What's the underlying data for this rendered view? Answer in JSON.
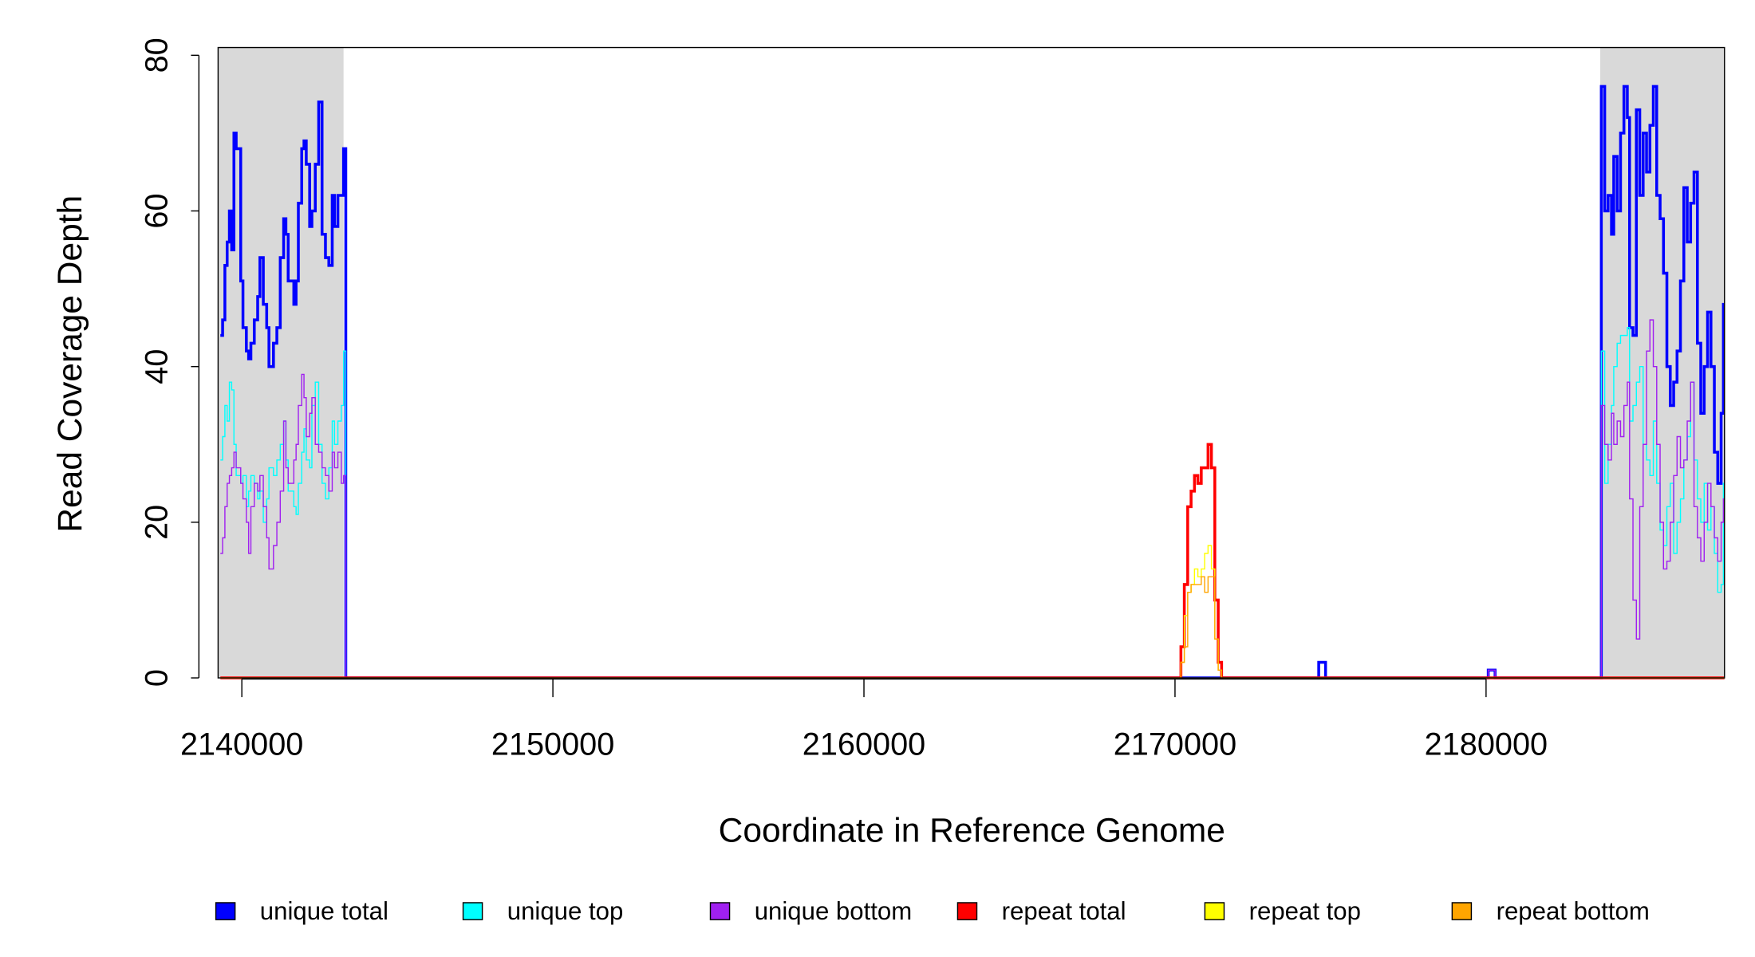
{
  "chart_data": {
    "type": "step",
    "x_label": "Coordinate in Reference Genome",
    "y_label": "Read Coverage Depth",
    "xlim": [
      2139237,
      2187665
    ],
    "ylim": [
      0,
      81
    ],
    "xticks": [
      2140000,
      2150000,
      2160000,
      2170000,
      2180000
    ],
    "yticks": [
      0,
      20,
      40,
      60,
      80
    ],
    "shaded_ranges": [
      [
        2139237,
        2143270
      ],
      [
        2183670,
        2187665
      ]
    ],
    "shade_color": "#d9d9d9",
    "legend_position": "bottom",
    "series": [
      {
        "name": "unique total",
        "color": "#0000ff",
        "width": 2.5,
        "x": [
          2139310,
          2139382,
          2139455,
          2139528,
          2139600,
          2139673,
          2139746,
          2139818,
          2139964,
          2140036,
          2140145,
          2140218,
          2140291,
          2140400,
          2140509,
          2140581,
          2140690,
          2140799,
          2140872,
          2141017,
          2141126,
          2141235,
          2141344,
          2141417,
          2141490,
          2141671,
          2141744,
          2141817,
          2141925,
          2141998,
          2142071,
          2142180,
          2142252,
          2142361,
          2142470,
          2142579,
          2142688,
          2142797,
          2142906,
          2142979,
          2143088,
          2143197,
          2143270,
          2143342,
          2174620,
          2174840,
          2180070,
          2180290,
          2183705,
          2183814,
          2183923,
          2184032,
          2184105,
          2184214,
          2184323,
          2184432,
          2184541,
          2184614,
          2184723,
          2184832,
          2184941,
          2185050,
          2185159,
          2185268,
          2185377,
          2185486,
          2185595,
          2185704,
          2185813,
          2185922,
          2186031,
          2186140,
          2186249,
          2186358,
          2186467,
          2186576,
          2186685,
          2186794,
          2186903,
          2187012,
          2187121,
          2187230,
          2187339,
          2187448,
          2187557,
          2187630
        ],
        "values": [
          44,
          46,
          53,
          56,
          60,
          55,
          70,
          68,
          51,
          45,
          42,
          41,
          43,
          46,
          49,
          54,
          48,
          45,
          40,
          43,
          45,
          54,
          59,
          57,
          51,
          48,
          51,
          61,
          68,
          69,
          66,
          58,
          60,
          66,
          74,
          57,
          54,
          53,
          62,
          58,
          62,
          62,
          68,
          0,
          2,
          0,
          1,
          0,
          76,
          60,
          62,
          57,
          67,
          60,
          70,
          76,
          72,
          45,
          44,
          73,
          62,
          70,
          65,
          71,
          76,
          62,
          59,
          52,
          40,
          35,
          38,
          42,
          51,
          63,
          56,
          61,
          65,
          43,
          34,
          40,
          47,
          40,
          29,
          25,
          34,
          48
        ]
      },
      {
        "name": "unique top",
        "color": "#00ffff",
        "width": 1,
        "x": [
          2139310,
          2139382,
          2139455,
          2139528,
          2139600,
          2139673,
          2139746,
          2139818,
          2139964,
          2140036,
          2140145,
          2140218,
          2140291,
          2140400,
          2140509,
          2140581,
          2140690,
          2140799,
          2140872,
          2141017,
          2141126,
          2141235,
          2141344,
          2141417,
          2141490,
          2141671,
          2141744,
          2141817,
          2141925,
          2141998,
          2142071,
          2142180,
          2142252,
          2142361,
          2142470,
          2142579,
          2142688,
          2142797,
          2142906,
          2142979,
          2143088,
          2143197,
          2143270,
          2143342,
          2174620,
          2174840,
          2180070,
          2180290,
          2183705,
          2183814,
          2183923,
          2184032,
          2184105,
          2184214,
          2184323,
          2184432,
          2184541,
          2184614,
          2184723,
          2184832,
          2184941,
          2185050,
          2185159,
          2185268,
          2185377,
          2185486,
          2185595,
          2185704,
          2185813,
          2185922,
          2186031,
          2186140,
          2186249,
          2186358,
          2186467,
          2186576,
          2186685,
          2186794,
          2186903,
          2187012,
          2187121,
          2187230,
          2187339,
          2187448,
          2187557,
          2187630
        ],
        "values": [
          28,
          31,
          35,
          33,
          38,
          37,
          30,
          26,
          25,
          26,
          22,
          24,
          26,
          25,
          23,
          24,
          20,
          23,
          27,
          26,
          28,
          30,
          33,
          28,
          24,
          22,
          21,
          25,
          29,
          32,
          28,
          27,
          35,
          38,
          30,
          25,
          23,
          27,
          33,
          30,
          33,
          35,
          42,
          0,
          0,
          0,
          0,
          0,
          42,
          25,
          30,
          35,
          40,
          43,
          44,
          44,
          45,
          33,
          35,
          38,
          40,
          30,
          28,
          26,
          33,
          25,
          19,
          17,
          22,
          25,
          16,
          20,
          23,
          28,
          31,
          38,
          28,
          23,
          20,
          25,
          19,
          22,
          16,
          11,
          12,
          25
        ]
      },
      {
        "name": "unique bottom",
        "color": "#a020f0",
        "width": 1,
        "x": [
          2139310,
          2139382,
          2139455,
          2139528,
          2139600,
          2139673,
          2139746,
          2139818,
          2139964,
          2140036,
          2140145,
          2140218,
          2140291,
          2140400,
          2140509,
          2140581,
          2140690,
          2140799,
          2140872,
          2141017,
          2141126,
          2141235,
          2141344,
          2141417,
          2141490,
          2141671,
          2141744,
          2141817,
          2141925,
          2141998,
          2142071,
          2142180,
          2142252,
          2142361,
          2142470,
          2142579,
          2142688,
          2142797,
          2142906,
          2142979,
          2143088,
          2143197,
          2143270,
          2143342,
          2174620,
          2174840,
          2180070,
          2180290,
          2183705,
          2183814,
          2183923,
          2184032,
          2184105,
          2184214,
          2184323,
          2184432,
          2184541,
          2184614,
          2184723,
          2184832,
          2184941,
          2185050,
          2185159,
          2185268,
          2185377,
          2185486,
          2185595,
          2185704,
          2185813,
          2185922,
          2186031,
          2186140,
          2186249,
          2186358,
          2186467,
          2186576,
          2186685,
          2186794,
          2186903,
          2187012,
          2187121,
          2187230,
          2187339,
          2187448,
          2187557,
          2187630
        ],
        "values": [
          16,
          18,
          22,
          25,
          26,
          27,
          29,
          27,
          25,
          23,
          20,
          16,
          22,
          25,
          24,
          26,
          22,
          18,
          14,
          17,
          20,
          24,
          33,
          27,
          25,
          28,
          30,
          35,
          39,
          36,
          31,
          34,
          36,
          30,
          29,
          27,
          26,
          24,
          29,
          27,
          29,
          25,
          26,
          0,
          0,
          0,
          1,
          0,
          35,
          30,
          28,
          34,
          30,
          33,
          31,
          35,
          38,
          23,
          10,
          5,
          22,
          30,
          42,
          46,
          40,
          30,
          20,
          14,
          15,
          20,
          26,
          31,
          27,
          28,
          33,
          38,
          22,
          18,
          15,
          20,
          25,
          22,
          18,
          15,
          20,
          23
        ]
      },
      {
        "name": "repeat total",
        "color": "#ff0000",
        "width": 2.5,
        "x": [
          2139310,
          2170190,
          2170299,
          2170408,
          2170517,
          2170626,
          2170735,
          2170844,
          2170953,
          2171062,
          2171171,
          2171280,
          2171389,
          2171498
        ],
        "values": [
          0,
          4,
          12,
          22,
          24,
          26,
          25,
          27,
          27,
          30,
          27,
          10,
          2,
          0
        ]
      },
      {
        "name": "repeat top",
        "color": "#ffff00",
        "width": 1,
        "x": [
          2139310,
          2170190,
          2170299,
          2170408,
          2170517,
          2170626,
          2170735,
          2170844,
          2170953,
          2171062,
          2171171,
          2171280,
          2171389,
          2171498
        ],
        "values": [
          0,
          2,
          8,
          11,
          12,
          14,
          13,
          14,
          16,
          17,
          14,
          5,
          1,
          0
        ]
      },
      {
        "name": "repeat bottom",
        "color": "#ffa500",
        "width": 1,
        "x": [
          2139310,
          2170190,
          2170299,
          2170408,
          2170517,
          2170626,
          2170735,
          2170844,
          2170953,
          2171062,
          2171171,
          2171280,
          2171389,
          2171498
        ],
        "values": [
          0,
          2,
          4,
          11,
          12,
          12,
          12,
          13,
          11,
          13,
          13,
          5,
          1,
          0
        ]
      }
    ]
  }
}
